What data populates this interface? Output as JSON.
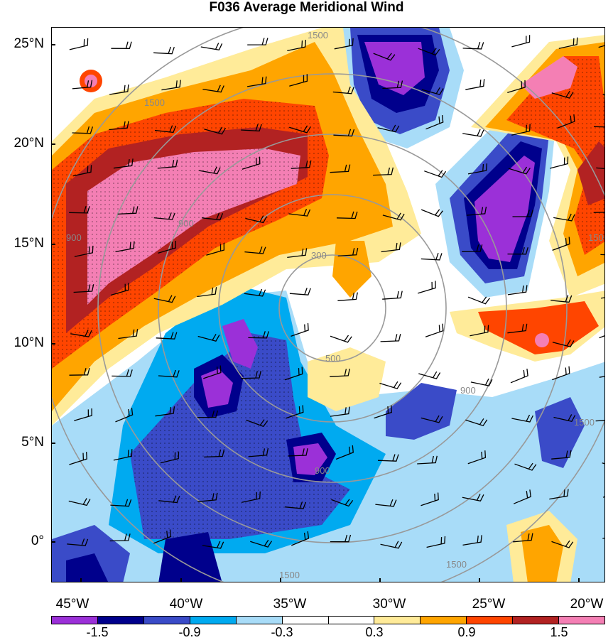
{
  "title": "F036 Average Meridional Wind",
  "map": {
    "lat_labels": [
      "25°N",
      "20°N",
      "15°N",
      "10°N",
      "5°N",
      "0°"
    ],
    "lon_labels": [
      "45°W",
      "40°W",
      "35°W",
      "30°W",
      "25°W",
      "20°W"
    ],
    "contour_labels": [
      "1500",
      "1500",
      "1500",
      "1500",
      "300",
      "900",
      "900",
      "1500",
      "500",
      "900",
      "900",
      "1500"
    ]
  },
  "colorbar": {
    "labels": [
      "-1.5",
      "-0.9",
      "-0.3",
      "0.3",
      "0.9",
      "1.5"
    ],
    "colors": [
      "#9b30d8",
      "#00008c",
      "#3a4bc8",
      "#00aaf0",
      "#a8dcf8",
      "#ffffff",
      "#ffffff",
      "#ffeb99",
      "#ffa500",
      "#ff4500",
      "#b22222",
      "#f47fb4"
    ]
  }
}
